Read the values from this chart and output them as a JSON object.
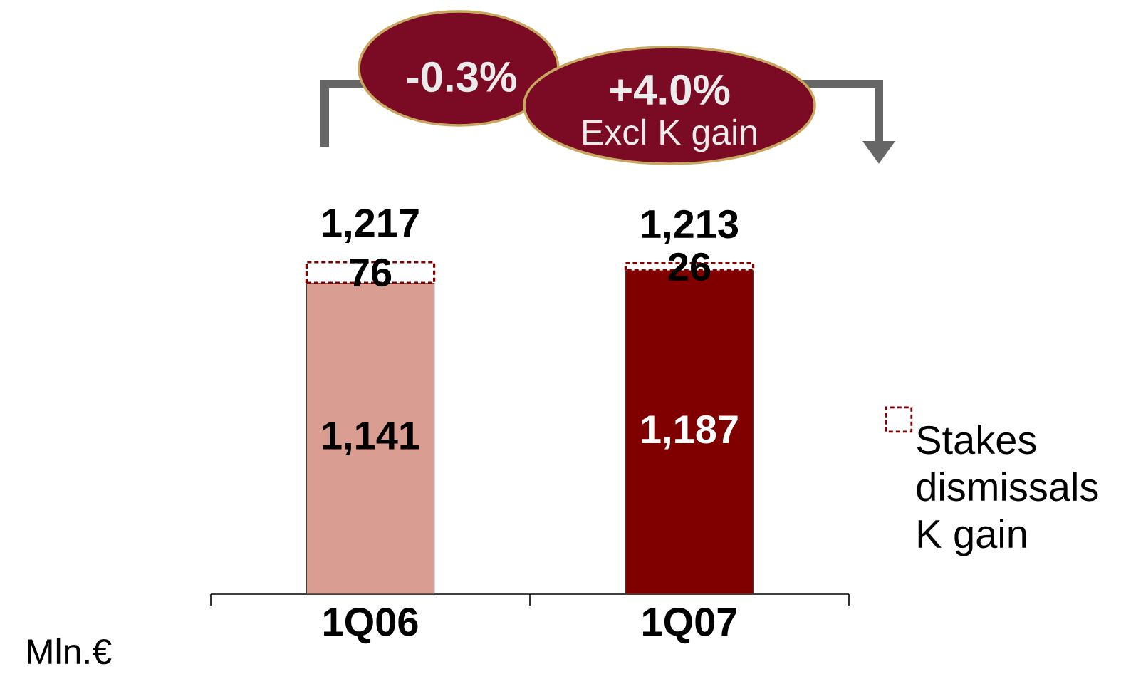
{
  "chart_data": {
    "type": "bar",
    "stacked": true,
    "categories": [
      "1Q06",
      "1Q07"
    ],
    "series": [
      {
        "colors": [
          "#da9d91",
          "#800000"
        ],
        "values": [
          1141,
          1187
        ],
        "value_labels": [
          "1,141",
          "1,187"
        ]
      },
      {
        "name": "Stakes dismissals K gain",
        "color": "#ffffff",
        "line_style": "dashed",
        "values": [
          76,
          26
        ],
        "value_labels": [
          "76",
          "26"
        ]
      }
    ],
    "totals": [
      "1,217",
      "1,213"
    ],
    "annotations": [
      "-0.3%",
      "+4.0%",
      "Excl K gain",
      "Mln.€"
    ],
    "legend": "right"
  }
}
